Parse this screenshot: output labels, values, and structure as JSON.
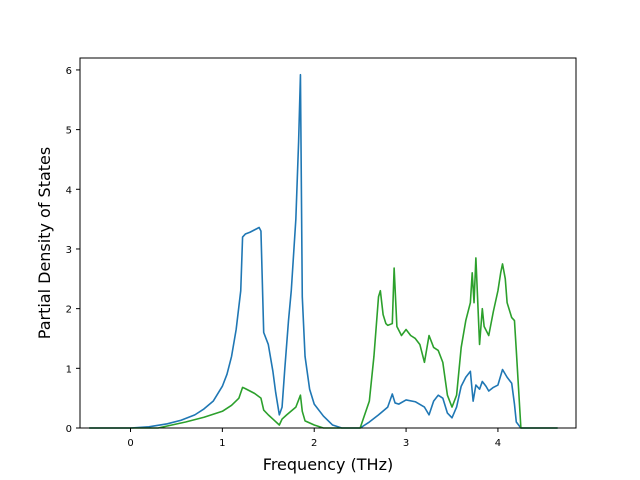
{
  "chart_data": {
    "type": "line",
    "title": "",
    "xlabel": "Frequency (THz)",
    "ylabel": "Partial Density of States",
    "xlim": [
      -0.55,
      4.85
    ],
    "ylim": [
      0,
      6.2
    ],
    "xticks": [
      "0",
      "1",
      "2",
      "3",
      "4"
    ],
    "yticks": [
      "0",
      "1",
      "2",
      "3",
      "4",
      "5",
      "6"
    ],
    "grid": false,
    "legend": "none",
    "series": [
      {
        "color": "#1f77b4",
        "x": [
          -0.45,
          0.0,
          0.2,
          0.4,
          0.55,
          0.7,
          0.8,
          0.9,
          1.0,
          1.05,
          1.1,
          1.15,
          1.2,
          1.22,
          1.25,
          1.3,
          1.35,
          1.4,
          1.42,
          1.45,
          1.5,
          1.55,
          1.58,
          1.62,
          1.65,
          1.68,
          1.72,
          1.75,
          1.8,
          1.83,
          1.85,
          1.87,
          1.9,
          1.95,
          2.0,
          2.1,
          2.2,
          2.3,
          2.5,
          2.6,
          2.7,
          2.8,
          2.85,
          2.88,
          2.92,
          3.0,
          3.1,
          3.2,
          3.25,
          3.3,
          3.35,
          3.4,
          3.45,
          3.5,
          3.55,
          3.6,
          3.65,
          3.7,
          3.73,
          3.76,
          3.8,
          3.83,
          3.87,
          3.9,
          3.95,
          4.0,
          4.05,
          4.1,
          4.15,
          4.18,
          4.2,
          4.25,
          4.4,
          4.65
        ],
        "y": [
          0.0,
          0.0,
          0.02,
          0.07,
          0.13,
          0.22,
          0.32,
          0.45,
          0.7,
          0.9,
          1.2,
          1.65,
          2.3,
          3.2,
          3.25,
          3.28,
          3.32,
          3.36,
          3.3,
          1.6,
          1.4,
          0.95,
          0.6,
          0.22,
          0.35,
          1.0,
          1.8,
          2.3,
          3.5,
          4.8,
          5.92,
          2.2,
          1.2,
          0.65,
          0.4,
          0.2,
          0.05,
          0.0,
          0.0,
          0.1,
          0.22,
          0.35,
          0.57,
          0.42,
          0.4,
          0.47,
          0.44,
          0.35,
          0.22,
          0.45,
          0.55,
          0.5,
          0.25,
          0.17,
          0.35,
          0.7,
          0.85,
          0.95,
          0.45,
          0.72,
          0.65,
          0.78,
          0.7,
          0.62,
          0.68,
          0.72,
          0.98,
          0.85,
          0.75,
          0.4,
          0.1,
          0.0,
          0.0,
          0.0
        ]
      },
      {
        "color": "#2ca02c",
        "x": [
          -0.45,
          0.0,
          0.3,
          0.6,
          0.8,
          1.0,
          1.1,
          1.18,
          1.22,
          1.25,
          1.3,
          1.35,
          1.42,
          1.45,
          1.5,
          1.55,
          1.62,
          1.65,
          1.7,
          1.8,
          1.85,
          1.87,
          1.9,
          2.0,
          2.1,
          2.3,
          2.5,
          2.6,
          2.65,
          2.7,
          2.72,
          2.75,
          2.78,
          2.8,
          2.85,
          2.87,
          2.9,
          2.95,
          3.0,
          3.05,
          3.1,
          3.15,
          3.2,
          3.25,
          3.3,
          3.35,
          3.4,
          3.45,
          3.5,
          3.55,
          3.6,
          3.65,
          3.7,
          3.72,
          3.74,
          3.76,
          3.8,
          3.83,
          3.85,
          3.9,
          3.95,
          4.0,
          4.03,
          4.05,
          4.08,
          4.1,
          4.15,
          4.18,
          4.2,
          4.25,
          4.4,
          4.65
        ],
        "y": [
          0.0,
          0.0,
          0.0,
          0.1,
          0.18,
          0.28,
          0.38,
          0.5,
          0.68,
          0.66,
          0.62,
          0.58,
          0.5,
          0.3,
          0.22,
          0.15,
          0.05,
          0.15,
          0.22,
          0.35,
          0.55,
          0.28,
          0.12,
          0.05,
          0.0,
          0.0,
          0.0,
          0.45,
          1.2,
          2.2,
          2.3,
          1.9,
          1.75,
          1.72,
          1.75,
          2.68,
          1.7,
          1.55,
          1.65,
          1.55,
          1.5,
          1.4,
          1.1,
          1.55,
          1.35,
          1.3,
          1.1,
          0.55,
          0.35,
          0.55,
          1.35,
          1.8,
          2.1,
          2.6,
          2.1,
          2.85,
          1.4,
          2.0,
          1.7,
          1.55,
          1.95,
          2.3,
          2.6,
          2.75,
          2.5,
          2.1,
          1.85,
          1.8,
          1.3,
          0.0,
          0.0,
          0.0
        ]
      }
    ]
  }
}
